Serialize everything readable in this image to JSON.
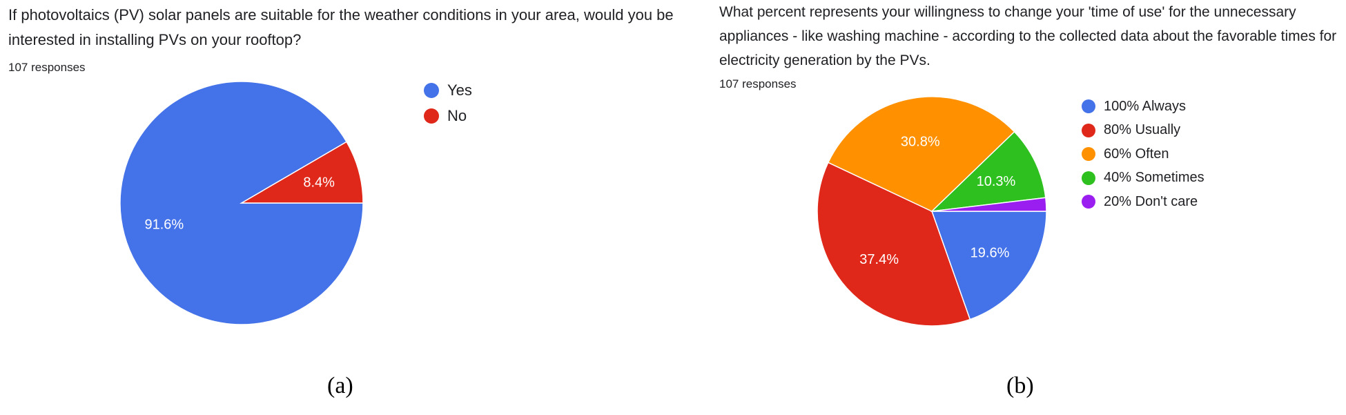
{
  "chart_data": [
    {
      "type": "pie",
      "title": "If photovoltaics (PV) solar panels are suitable for the weather conditions in your area, would you be interested in installing PVs on your rooftop?",
      "subtitle": "107 responses",
      "caption": "(a)",
      "categories": [
        "Yes",
        "No"
      ],
      "values": [
        91.6,
        8.4
      ],
      "labels": [
        "91.6%",
        "8.4%"
      ],
      "colors": [
        "#4472e8",
        "#e0281a"
      ],
      "legend_position": "right"
    },
    {
      "type": "pie",
      "title": "What percent represents your willingness to change your 'time of use' for the unnecessary appliances - like washing machine - according to the collected data about the favorable times for electricity generation by the PVs.",
      "subtitle": "107 responses",
      "caption": "(b)",
      "categories": [
        "100% Always",
        "80% Usually",
        "60% Often",
        "40% Sometimes",
        "20% Don't care"
      ],
      "values": [
        19.6,
        37.4,
        30.8,
        10.3,
        1.9
      ],
      "labels": [
        "19.6%",
        "37.4%",
        "30.8%",
        "10.3%",
        ""
      ],
      "colors": [
        "#4472e8",
        "#e0281a",
        "#ff9100",
        "#2ec01e",
        "#9b1ef0"
      ],
      "legend_position": "right"
    }
  ]
}
